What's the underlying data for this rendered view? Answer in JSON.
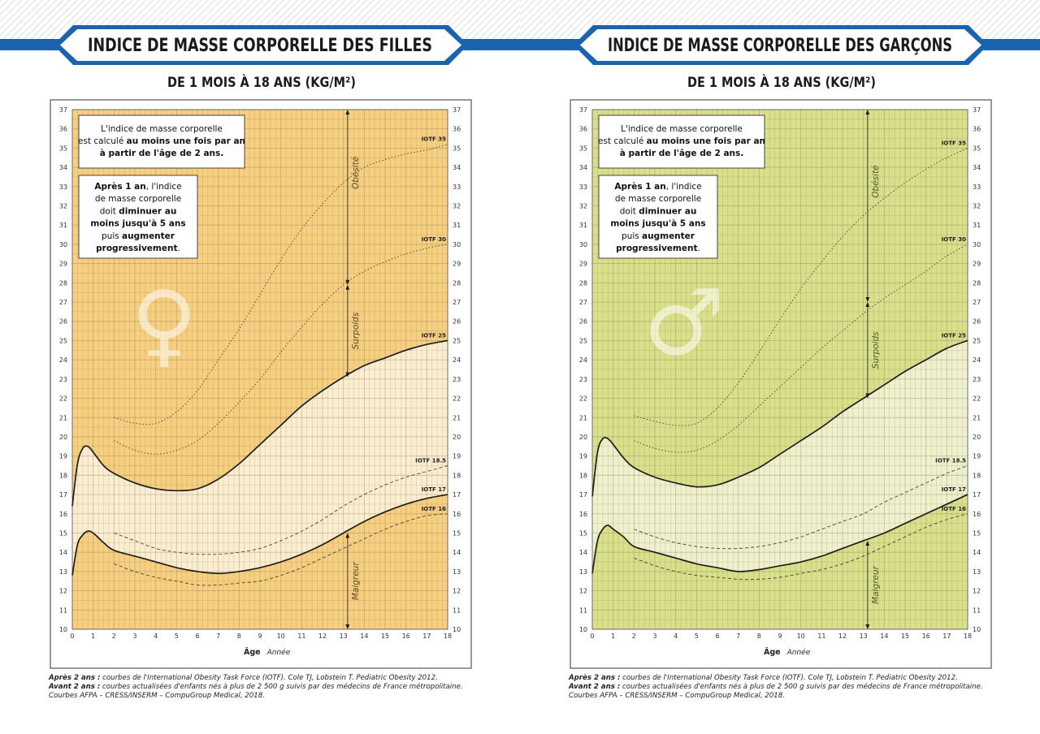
{
  "colors": {
    "banner_blue": "#1a63b0",
    "banner_dark": "#1b1b1b"
  },
  "charts": [
    {
      "id": "girls",
      "title": "INDICE DE MASSE CORPORELLE DES FILLES",
      "subtitle": "DE 1 MOIS À 18 ANS (KG/M²)",
      "symbol": "♀",
      "bg_color": "#f6cf80",
      "band_color": "#fbf2de",
      "text_color": "#5a4a2a",
      "xlabel": "Âge",
      "xunit": "Année",
      "note1": {
        "plain1": "L'indice de masse corporelle",
        "plain2": "est calculé ",
        "bold1": "au moins une fois par an",
        "bold2": "à partir de l'âge de 2 ans."
      },
      "note2": {
        "bold1": "Après 1 an",
        "plain1": ", l'indice",
        "plain2": "de masse corporelle",
        "plain3": "doit ",
        "bold2": "diminuer au",
        "bold3": "moins jusqu'à 5 ans",
        "plain4": "puis ",
        "bold4": "augmenter",
        "bold5": "progressivement",
        "plain5": "."
      },
      "zones": {
        "obese": "Obésité",
        "overweight": "Surpoids",
        "underweight": "Maigreur"
      },
      "footnote": {
        "b1": "Après 2 ans :",
        "t1": " courbes de l'International Obesity Task Force (IOTF). Cole TJ, Lobstein T. Pediatric Obesity 2012.",
        "b2": "Avant 2 ans :",
        "t2": " courbes actualisées d'enfants nés à plus de 2 500 g suivis par des médecins de France métropolitaine. Courbes AFPA – CRESS/INSERM – CompuGroup Medical, 2018."
      }
    },
    {
      "id": "boys",
      "title": "INDICE DE MASSE CORPORELLE DES GARÇONS",
      "subtitle": "DE 1 MOIS À 18 ANS (KG/M²)",
      "symbol": "♂",
      "bg_color": "#d9df8a",
      "band_color": "#f2f4d8",
      "text_color": "#4a5a2a",
      "xlabel": "Âge",
      "xunit": "Année",
      "note1": {
        "plain1": "L'indice de masse corporelle",
        "plain2": "est calculé ",
        "bold1": "au moins une fois par an",
        "bold2": "à partir de l'âge de 2 ans."
      },
      "note2": {
        "bold1": "Après 1 an",
        "plain1": ", l'indice",
        "plain2": "de masse corporelle",
        "plain3": "doit ",
        "bold2": "diminuer au",
        "bold3": "moins jusqu'à 5 ans",
        "plain4": "puis ",
        "bold4": "augmenter",
        "bold5": "progressivement",
        "plain5": "."
      },
      "zones": {
        "obese": "Obésité",
        "overweight": "Surpoids",
        "underweight": "Maigreur"
      },
      "footnote": {
        "b1": "Après 2 ans :",
        "t1": " courbes de l'International Obesity Task Force (IOTF). Cole TJ, Lobstein T. Pediatric Obesity 2012.",
        "b2": "Avant 2 ans :",
        "t2": " courbes actualisées d'enfants nés à plus de 2 500 g suivis par des médecins de France métropolitaine. Courbes AFPA – CRESS/INSERM – CompuGroup Medical, 2018."
      }
    }
  ],
  "chart_data": [
    {
      "type": "line",
      "title": "INDICE DE MASSE CORPORELLE DES FILLES",
      "xlabel": "Âge",
      "ylabel": "",
      "xlim": [
        0,
        18
      ],
      "ylim": [
        10,
        37
      ],
      "xticks": [
        0,
        1,
        2,
        3,
        4,
        5,
        6,
        7,
        8,
        9,
        10,
        11,
        12,
        13,
        14,
        15,
        16,
        17,
        18
      ],
      "yticks": [
        10,
        11,
        12,
        13,
        14,
        15,
        16,
        17,
        18,
        19,
        20,
        21,
        22,
        23,
        24,
        25,
        26,
        27,
        28,
        29,
        30,
        31,
        32,
        33,
        34,
        35,
        36,
        37
      ],
      "grid": true,
      "series": [
        {
          "name": "IOTF 35",
          "style": "dotted",
          "x": [
            2,
            3,
            4,
            5,
            6,
            7,
            8,
            9,
            10,
            11,
            12,
            13,
            14,
            15,
            16,
            17,
            18
          ],
          "y": [
            21.0,
            20.7,
            20.7,
            21.3,
            22.4,
            24.0,
            25.6,
            27.4,
            29.2,
            30.8,
            32.1,
            33.2,
            34.0,
            34.4,
            34.7,
            34.9,
            35.2
          ]
        },
        {
          "name": "IOTF 30",
          "style": "dotted",
          "x": [
            2,
            3,
            4,
            5,
            6,
            7,
            8,
            9,
            10,
            11,
            12,
            13,
            14,
            15,
            16,
            17,
            18
          ],
          "y": [
            19.8,
            19.3,
            19.1,
            19.3,
            19.8,
            20.7,
            21.8,
            23.0,
            24.4,
            25.7,
            26.9,
            27.9,
            28.6,
            29.1,
            29.5,
            29.8,
            30.0
          ]
        },
        {
          "name": "IOTF 25",
          "style": "solid",
          "x": [
            0,
            0.25,
            0.5,
            0.75,
            1,
            1.5,
            2,
            3,
            4,
            5,
            6,
            7,
            8,
            9,
            10,
            11,
            12,
            13,
            14,
            15,
            16,
            17,
            18
          ],
          "y": [
            16.4,
            18.6,
            19.4,
            19.5,
            19.2,
            18.5,
            18.1,
            17.6,
            17.3,
            17.2,
            17.3,
            17.8,
            18.6,
            19.6,
            20.6,
            21.6,
            22.4,
            23.1,
            23.7,
            24.1,
            24.5,
            24.8,
            25.0
          ]
        },
        {
          "name": "IOTF 18.5",
          "style": "dashed",
          "x": [
            2,
            3,
            4,
            5,
            6,
            7,
            8,
            9,
            10,
            11,
            12,
            13,
            14,
            15,
            16,
            17,
            18
          ],
          "y": [
            15.0,
            14.6,
            14.2,
            14.0,
            13.9,
            13.9,
            14.0,
            14.2,
            14.6,
            15.1,
            15.7,
            16.4,
            17.0,
            17.5,
            17.9,
            18.2,
            18.5
          ]
        },
        {
          "name": "IOTF 17",
          "style": "solid",
          "x": [
            0,
            0.25,
            0.5,
            0.75,
            1,
            1.5,
            2,
            3,
            4,
            5,
            6,
            7,
            8,
            9,
            10,
            11,
            12,
            13,
            14,
            15,
            16,
            17,
            18
          ],
          "y": [
            12.8,
            14.4,
            14.9,
            15.1,
            15.0,
            14.5,
            14.1,
            13.8,
            13.5,
            13.2,
            13.0,
            12.9,
            13.0,
            13.2,
            13.5,
            13.9,
            14.4,
            15.0,
            15.6,
            16.1,
            16.5,
            16.8,
            17.0
          ]
        },
        {
          "name": "IOTF 16",
          "style": "dashed",
          "x": [
            2,
            3,
            4,
            5,
            6,
            7,
            8,
            9,
            10,
            11,
            12,
            13,
            14,
            15,
            16,
            17,
            18
          ],
          "y": [
            13.4,
            13.0,
            12.7,
            12.5,
            12.3,
            12.3,
            12.4,
            12.5,
            12.8,
            13.2,
            13.7,
            14.2,
            14.7,
            15.2,
            15.6,
            15.9,
            16.0
          ]
        }
      ],
      "zones": [
        {
          "label": "Obésité",
          "y": [
            27.9,
            37
          ]
        },
        {
          "label": "Surpoids",
          "y": [
            23.1,
            27.9
          ]
        },
        {
          "label": "Maigreur",
          "y": [
            10,
            15.0
          ]
        }
      ]
    },
    {
      "type": "line",
      "title": "INDICE DE MASSE CORPORELLE DES GARÇONS",
      "xlabel": "Âge",
      "ylabel": "",
      "xlim": [
        0,
        18
      ],
      "ylim": [
        10,
        37
      ],
      "xticks": [
        0,
        1,
        2,
        3,
        4,
        5,
        6,
        7,
        8,
        9,
        10,
        11,
        12,
        13,
        14,
        15,
        16,
        17,
        18
      ],
      "yticks": [
        10,
        11,
        12,
        13,
        14,
        15,
        16,
        17,
        18,
        19,
        20,
        21,
        22,
        23,
        24,
        25,
        26,
        27,
        28,
        29,
        30,
        31,
        32,
        33,
        34,
        35,
        36,
        37
      ],
      "grid": true,
      "series": [
        {
          "name": "IOTF 35",
          "style": "dotted",
          "x": [
            2,
            3,
            4,
            5,
            6,
            7,
            8,
            9,
            10,
            11,
            12,
            13,
            14,
            15,
            16,
            17,
            18
          ],
          "y": [
            21.1,
            20.8,
            20.6,
            20.7,
            21.5,
            22.8,
            24.4,
            26.1,
            27.7,
            29.1,
            30.4,
            31.5,
            32.4,
            33.2,
            33.9,
            34.5,
            35.0
          ]
        },
        {
          "name": "IOTF 30",
          "style": "dotted",
          "x": [
            2,
            3,
            4,
            5,
            6,
            7,
            8,
            9,
            10,
            11,
            12,
            13,
            14,
            15,
            16,
            17,
            18
          ],
          "y": [
            19.8,
            19.4,
            19.2,
            19.3,
            19.8,
            20.6,
            21.6,
            22.6,
            23.6,
            24.6,
            25.5,
            26.4,
            27.2,
            27.9,
            28.6,
            29.4,
            30.0
          ]
        },
        {
          "name": "IOTF 25",
          "style": "solid",
          "x": [
            0,
            0.25,
            0.5,
            0.75,
            1,
            1.5,
            2,
            3,
            4,
            5,
            6,
            7,
            8,
            9,
            10,
            11,
            12,
            13,
            14,
            15,
            16,
            17,
            18
          ],
          "y": [
            16.9,
            19.2,
            19.9,
            19.9,
            19.6,
            18.9,
            18.4,
            17.9,
            17.6,
            17.4,
            17.5,
            17.9,
            18.4,
            19.1,
            19.8,
            20.5,
            21.3,
            22.0,
            22.7,
            23.4,
            24.0,
            24.6,
            25.0
          ]
        },
        {
          "name": "IOTF 18.5",
          "style": "dashed",
          "x": [
            2,
            3,
            4,
            5,
            6,
            7,
            8,
            9,
            10,
            11,
            12,
            13,
            14,
            15,
            16,
            17,
            18
          ],
          "y": [
            15.2,
            14.8,
            14.5,
            14.3,
            14.2,
            14.2,
            14.3,
            14.5,
            14.8,
            15.2,
            15.6,
            16.0,
            16.6,
            17.1,
            17.6,
            18.1,
            18.5
          ]
        },
        {
          "name": "IOTF 17",
          "style": "solid",
          "x": [
            0,
            0.25,
            0.5,
            0.75,
            1,
            1.5,
            2,
            3,
            4,
            5,
            6,
            7,
            8,
            9,
            10,
            11,
            12,
            13,
            14,
            15,
            16,
            17,
            18
          ],
          "y": [
            12.9,
            14.6,
            15.2,
            15.4,
            15.2,
            14.8,
            14.3,
            14.0,
            13.7,
            13.4,
            13.2,
            13.0,
            13.1,
            13.3,
            13.5,
            13.8,
            14.2,
            14.6,
            15.0,
            15.5,
            16.0,
            16.5,
            17.0
          ]
        },
        {
          "name": "IOTF 16",
          "style": "dashed",
          "x": [
            2,
            3,
            4,
            5,
            6,
            7,
            8,
            9,
            10,
            11,
            12,
            13,
            14,
            15,
            16,
            17,
            18
          ],
          "y": [
            13.7,
            13.3,
            13.0,
            12.8,
            12.7,
            12.6,
            12.6,
            12.7,
            12.9,
            13.1,
            13.4,
            13.8,
            14.3,
            14.8,
            15.3,
            15.7,
            16.0
          ]
        }
      ],
      "zones": [
        {
          "label": "Obésité",
          "y": [
            27.0,
            37
          ]
        },
        {
          "label": "Surpoids",
          "y": [
            22.0,
            27.0
          ]
        },
        {
          "label": "Maigreur",
          "y": [
            10,
            14.6
          ]
        }
      ]
    }
  ]
}
